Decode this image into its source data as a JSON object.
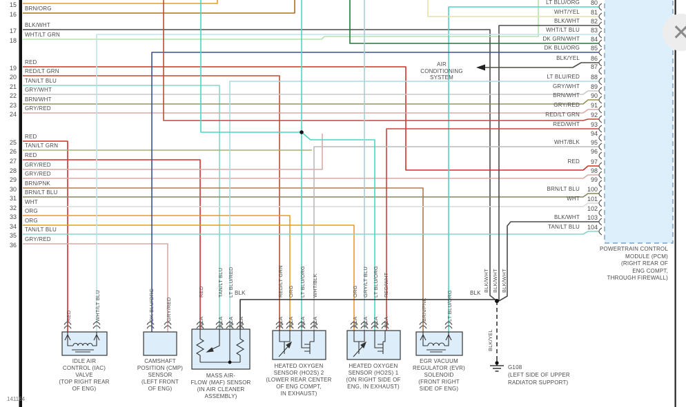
{
  "page": {
    "doc_number": "141164"
  },
  "close_button": {
    "icon": "✕"
  },
  "pcm": {
    "label_lines": [
      "POWERTRAIN CONTROL",
      "MODULE (PCM)",
      "(RIGHT REAR OF",
      "ENG COMPT,",
      "THROUGH FIREWALL)"
    ]
  },
  "ac_system": {
    "lines": [
      "AIR",
      "CONDITIONING",
      "SYSTEM"
    ]
  },
  "ground": {
    "name": "G108",
    "wire_label": "BLK/YEL",
    "location_lines": [
      "(LEFT SIDE OF UPPER",
      "RADIATOR SUPPORT)"
    ]
  },
  "junction": {
    "blk_label": "BLK",
    "blk_label_maf": "BLK",
    "blkwht_labels": [
      "BLK/WHT",
      "BLK/WHT",
      "BLK/WHT"
    ]
  },
  "left_pins": [
    {
      "num": "15",
      "label": ""
    },
    {
      "num": "16",
      "label": "BRN/ORG"
    },
    {
      "num": "17",
      "label": "BLK/WHT"
    },
    {
      "num": "18",
      "label": "WHT/LT GRN"
    },
    {
      "num": "19",
      "label": "RED"
    },
    {
      "num": "20",
      "label": "RED/LT GRN"
    },
    {
      "num": "21",
      "label": "TAN/LT BLU"
    },
    {
      "num": "22",
      "label": "GRY/WHT"
    },
    {
      "num": "23",
      "label": "BRN/WHT"
    },
    {
      "num": "24",
      "label": "GRY/RED"
    },
    {
      "num": "25",
      "label": "RED"
    },
    {
      "num": "26",
      "label": "TAN/LT GRN"
    },
    {
      "num": "27",
      "label": "RED"
    },
    {
      "num": "28",
      "label": "GRY/RED"
    },
    {
      "num": "29",
      "label": "GRY/RED"
    },
    {
      "num": "30",
      "label": "BRN/PNK"
    },
    {
      "num": "31",
      "label": "BRN/LT BLU"
    },
    {
      "num": "32",
      "label": "WHT"
    },
    {
      "num": "33",
      "label": "ORG"
    },
    {
      "num": "34",
      "label": "ORG"
    },
    {
      "num": "35",
      "label": "TAN/LT BLU"
    },
    {
      "num": "36",
      "label": "GRY/RED"
    }
  ],
  "right_pins": [
    {
      "num": "80",
      "label": "LT BLU/ORG"
    },
    {
      "num": "81",
      "label": "WHT/YEL"
    },
    {
      "num": "82",
      "label": "BLK/WHT"
    },
    {
      "num": "83",
      "label": "WHT/LT BLU"
    },
    {
      "num": "84",
      "label": "DK GRN/WHT"
    },
    {
      "num": "85",
      "label": "DK BLU/ORG"
    },
    {
      "num": "86",
      "label": "BLK/YEL"
    },
    {
      "num": "87",
      "label": ""
    },
    {
      "num": "88",
      "label": "LT BLU/RED"
    },
    {
      "num": "89",
      "label": "GRY/WHT"
    },
    {
      "num": "90",
      "label": "BRN/WHT"
    },
    {
      "num": "91",
      "label": "GRY/RED"
    },
    {
      "num": "92",
      "label": "RED/LT GRN"
    },
    {
      "num": "93",
      "label": "RED/WHT"
    },
    {
      "num": "94",
      "label": ""
    },
    {
      "num": "95",
      "label": "WHT/BLK"
    },
    {
      "num": "96",
      "label": ""
    },
    {
      "num": "97",
      "label": "RED"
    },
    {
      "num": "98",
      "label": ""
    },
    {
      "num": "99",
      "label": ""
    },
    {
      "num": "100",
      "label": "BRN/LT BLU"
    },
    {
      "num": "101",
      "label": "WHT"
    },
    {
      "num": "102",
      "label": ""
    },
    {
      "num": "103",
      "label": "BLK/WHT"
    },
    {
      "num": "104",
      "label": "TAN/LT BLU"
    }
  ],
  "components": [
    {
      "id": "iac",
      "label_lines": [
        "IDLE AIR",
        "CONTROL (IAC)",
        "VALVE",
        "(TOP RIGHT REAR",
        "OF ENG)"
      ],
      "wires": [
        "RED",
        "WHT/LT BLU"
      ]
    },
    {
      "id": "cmp",
      "label_lines": [
        "CAMSHAFT",
        "POSITION (CMP)",
        "SENSOR",
        "(LEFT FRONT",
        "OF ENG)"
      ],
      "wires": [
        "DK BLU/ORG",
        "GRY/RED"
      ]
    },
    {
      "id": "maf",
      "label_lines": [
        "MASS AIR-",
        "FLOW (MAF) SENSOR",
        "(IN AIR CLEANER",
        "ASSEMBLY)"
      ],
      "wires": [
        "RED",
        "TAN/LT BLU",
        "LT BLU/RED",
        "BLK"
      ],
      "pin_labels": [
        "NCA",
        "NCA",
        "NCA",
        "NCA"
      ]
    },
    {
      "id": "ho2s2",
      "label_lines": [
        "HEATED OXYGEN",
        "SENSOR (HO2S) 2",
        "(LOWER REAR CENTER",
        "OF ENG COMPT,",
        "IN EXHAUST)"
      ],
      "wires": [
        "RED/LT GRN",
        "ORG",
        "LT BLU/ORG",
        "WHT/BLK"
      ],
      "pin_labels": [
        "NCA",
        "NCA",
        "NCA",
        "NCA"
      ]
    },
    {
      "id": "ho2s1",
      "label_lines": [
        "HEATED OXYGEN",
        "SENSOR (HO2S) 1",
        "(ON RIGHT SIDE OF",
        "ENG, IN EXHAUST)"
      ],
      "wires": [
        "ORG",
        "GRY/LT BLU",
        "LT BLU/ORG",
        "RED/WHT"
      ],
      "pin_labels": [
        "NCA",
        "NCA",
        "NCA",
        "NCA"
      ]
    },
    {
      "id": "evr",
      "label_lines": [
        "EGR VACUUM",
        "REGULATOR (EVR)",
        "SOLENOID",
        "(FRONT RIGHT",
        "SIDE OF ENG)"
      ],
      "wires": [
        "BRN/PNK",
        "LT BLU/ORG"
      ]
    }
  ],
  "colors": {
    "ORG": "#e69a28",
    "BRN/ORG": "#ad6d1f",
    "BLK/WHT": "#4a4a4a",
    "WHT/LT GRN": "#b5dfae",
    "RED": "#d22f27",
    "RED/LT GRN": "#bf4a30",
    "TAN/LT BLU": "#86d6c9",
    "GRY/WHT": "#c9c9c9",
    "BRN/WHT": "#9b8f55",
    "GRY/RED": "#d9a8a6",
    "TAN/LT GRN": "#a3b069",
    "BRN/PNK": "#ab7a52",
    "BRN/LT BLU": "#85855c",
    "WHT": "#d9d9d9",
    "LT BLU/ORG": "#49d5c5",
    "LT BLU/RED": "#a6dbe3",
    "WHT/YEL": "#e6e0a8",
    "WHT/LT BLU": "#bfe3ea",
    "DK GRN/WHT": "#1f7a33",
    "DK BLU/ORG": "#3a4f93",
    "BLK/YEL": "#4d4d42",
    "BLK": "#333333",
    "WHT/BLK": "#b9b9b9",
    "RED/WHT": "#c8453c",
    "GRY/LT BLU": "#a5cdd2"
  }
}
